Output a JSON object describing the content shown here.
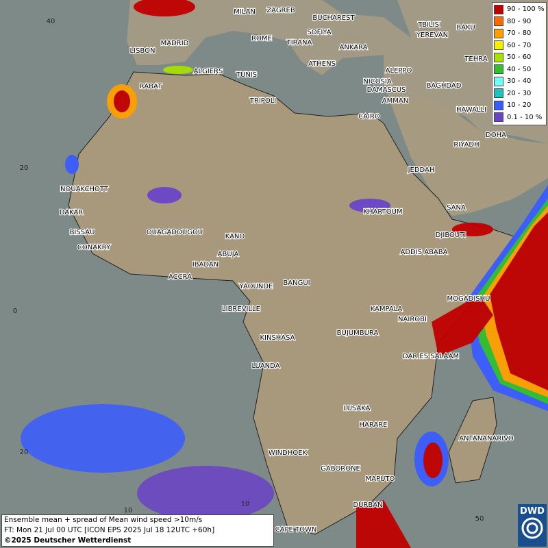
{
  "map": {
    "cities": [
      "MILAN",
      "ZAGREB",
      "BUCHAREST",
      "SOFIYA",
      "ROME",
      "TIRANA",
      "ANKARA",
      "LISBON",
      "MADRID",
      "TBILISI",
      "YEREVAN",
      "BAKU",
      "TEHRA",
      "ALGIERS",
      "TUNIS",
      "ATHENS",
      "ALEPPO",
      "RABAT",
      "NICOSIA",
      "BAGHDAD",
      "DAMASCUS",
      "TRIPOLI",
      "AMMAN",
      "HAWALLI",
      "CAIRO",
      "DOHA",
      "RIYADH",
      "NOUAKCHOTT",
      "JEDDAH",
      "DAKAR",
      "KHARTOUM",
      "SANA",
      "BISSAU",
      "DJIBOUTI",
      "OUAGADOUGOU",
      "KANO",
      "CONAKRY",
      "ABUJA",
      "ADDIS ABABA",
      "IBADAN",
      "ACCRA",
      "YAOUNDE",
      "BANGUI",
      "MOGADISHU",
      "LIBREVILLE",
      "KAMPALA",
      "NAIROBI",
      "BUJUMBURA",
      "KINSHASA",
      "DAR ES SALAAM",
      "LUANDA",
      "LUSAKA",
      "HARARE",
      "ANTANANARIVO",
      "WINDHOEK",
      "GABORONE",
      "MAPUTO",
      "DURBAN",
      "CAPE TOWN"
    ],
    "lat_labels": [
      "40",
      "20",
      "0",
      "20"
    ],
    "lon_labels": [
      "10",
      "10",
      "50"
    ]
  },
  "legend": {
    "labels": [
      "90 - 100 %",
      "80 - 90",
      "70 - 80",
      "60 - 70",
      "50 - 60",
      "40 - 50",
      "30 - 40",
      "20 - 30",
      "10 - 20",
      "0.1 - 10 %"
    ],
    "colors": [
      "#c00000",
      "#ff6a00",
      "#ffa000",
      "#f0f000",
      "#a8e000",
      "#30c030",
      "#70ffff",
      "#20c0c0",
      "#3a5cff",
      "#6a44c8"
    ]
  },
  "info": {
    "line1": "Ensemble mean + spread of Mean wind speed >10m/s",
    "line2": "FT: Mon 21 Jul 00 UTC [ICON EPS 2025 Jul 18 12UTC +60h]",
    "line3": "©2025 Deutscher Wetterdienst"
  },
  "logo": "DWD"
}
